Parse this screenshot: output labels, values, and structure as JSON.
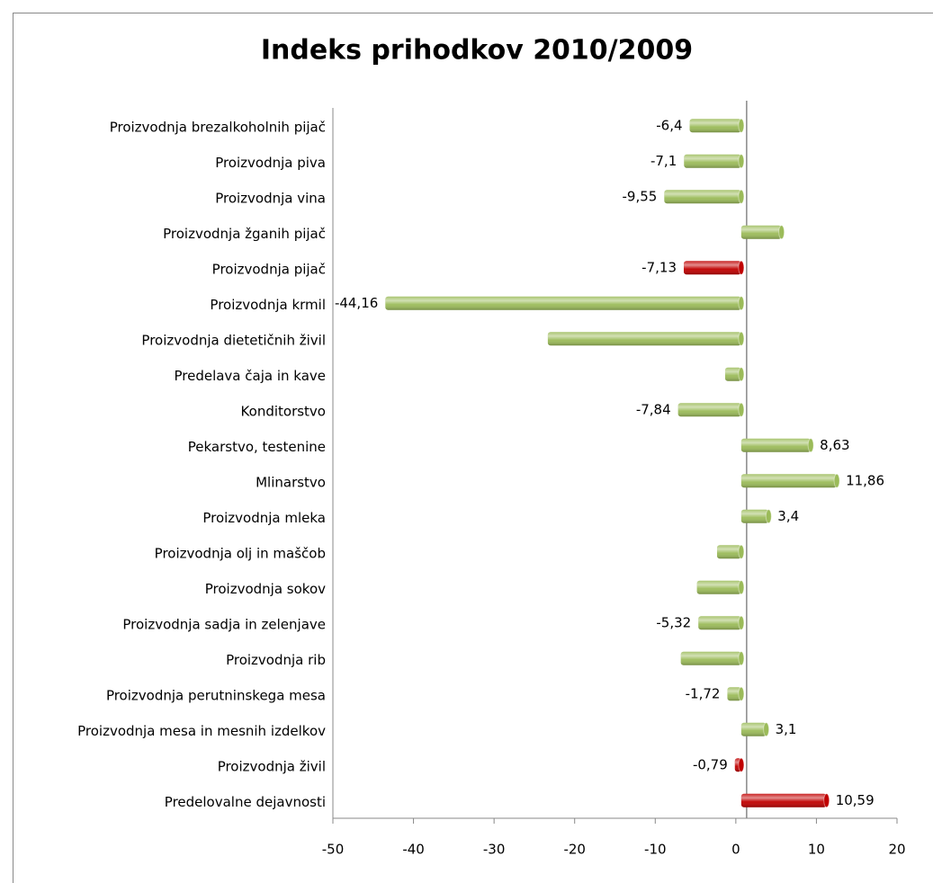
{
  "chart_data": {
    "type": "barh",
    "title": "Indeks prihodkov 2010/2009",
    "categories": [
      "Proizvodnja brezalkoholnih pijač",
      "Proizvodnja piva",
      "Proizvodnja vina",
      "Proizvodnja žganih pijač",
      "Proizvodnja pijač",
      "Proizvodnja krmil",
      "Proizvodnja dietetičnih živil",
      "Predelava čaja in kave",
      "Konditorstvo",
      "Pekarstvo, testenine",
      "Mlinarstvo",
      "Proizvodnja mleka",
      "Proizvodnja olj in maščob",
      "Proizvodnja sokov",
      "Proizvodnja sadja in zelenjave",
      "Proizvodnja rib",
      "Proizvodnja perutninskega mesa",
      "Proizvodnja mesa in mesnih izdelkov",
      "Proizvodnja živil",
      "Predelovalne dejavnosti"
    ],
    "values": [
      -6.4,
      -7.1,
      -9.55,
      5,
      -7.13,
      -44.16,
      -24,
      -2,
      -7.84,
      8.63,
      11.86,
      3.4,
      -3,
      -5.5,
      -5.32,
      -7.5,
      -1.72,
      3.1,
      -0.79,
      10.59
    ],
    "value_labels": [
      "-6,4",
      "-7,1",
      "-9,55",
      null,
      "-7,13",
      "-44,16",
      null,
      null,
      "-7,84",
      "8,63",
      "11,86",
      "3,4",
      null,
      null,
      "-5,32",
      null,
      "-1,72",
      "3,1",
      "-0,79",
      "10,59"
    ],
    "colors": [
      "#9bbb59",
      "#9bbb59",
      "#9bbb59",
      "#9bbb59",
      "#c00000",
      "#9bbb59",
      "#9bbb59",
      "#9bbb59",
      "#9bbb59",
      "#9bbb59",
      "#9bbb59",
      "#9bbb59",
      "#9bbb59",
      "#9bbb59",
      "#9bbb59",
      "#9bbb59",
      "#9bbb59",
      "#9bbb59",
      "#c00000",
      "#c00000"
    ],
    "xlim": [
      -50,
      20
    ],
    "xticks": [
      -50,
      -40,
      -30,
      -20,
      -10,
      0,
      10,
      20
    ]
  }
}
